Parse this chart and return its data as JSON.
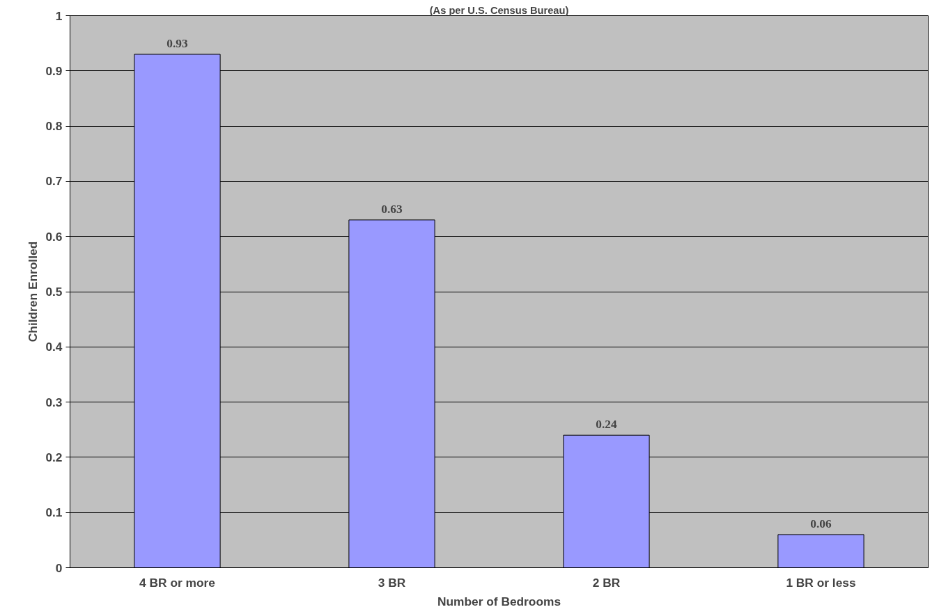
{
  "chart_data": {
    "type": "bar",
    "title": "(As per U.S. Census Bureau)",
    "xlabel": "Number of Bedrooms",
    "ylabel": "Children Enrolled",
    "categories": [
      "4 BR or more",
      "3 BR",
      "2 BR",
      "1 BR or less"
    ],
    "values": [
      0.93,
      0.63,
      0.24,
      0.06
    ],
    "color": "#9999ff",
    "ylim": [
      0,
      1
    ],
    "yticks": [
      0,
      0.1,
      0.2,
      0.3,
      0.4,
      0.5,
      0.6,
      0.7,
      0.8,
      0.9,
      1
    ],
    "grid": "y",
    "data_labels": true
  }
}
